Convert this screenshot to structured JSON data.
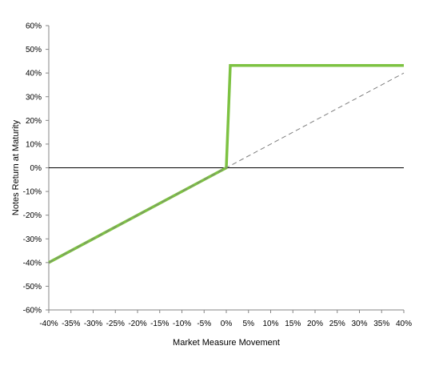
{
  "chart_data": {
    "type": "line",
    "title": "",
    "xlabel": "Market Measure Movement",
    "ylabel": "Notes Return at Maturity",
    "xlim": [
      -40,
      40
    ],
    "ylim": [
      -60,
      60
    ],
    "x_ticks": [
      "-40%",
      "-35%",
      "-30%",
      "-25%",
      "-20%",
      "-15%",
      "-10%",
      "-5%",
      "0%",
      "5%",
      "10%",
      "15%",
      "20%",
      "25%",
      "30%",
      "35%",
      "40%"
    ],
    "y_ticks": [
      "60%",
      "50%",
      "40%",
      "30%",
      "20%",
      "10%",
      "0%",
      "-10%",
      "-20%",
      "-30%",
      "-40%",
      "-50%",
      "-60%"
    ],
    "grid": false,
    "legend": "none",
    "series": [
      {
        "style": "dashed",
        "color": "#7f7f7f",
        "x": [
          -40,
          40
        ],
        "y": [
          -40,
          40
        ]
      },
      {
        "style": "solid",
        "color": "#7dc242",
        "x": [
          -40,
          0,
          0.9,
          40
        ],
        "y": [
          -40,
          0,
          43.2,
          43.2
        ]
      }
    ]
  }
}
